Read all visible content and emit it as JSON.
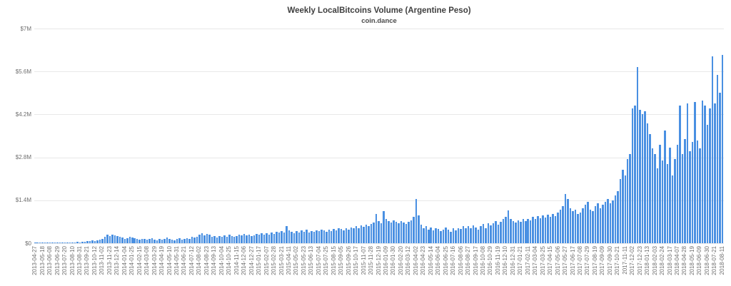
{
  "chart": {
    "title": "Weekly LocalBitcoins Volume (Argentine Peso)",
    "subtitle": "coin.dance"
  },
  "chart_data": {
    "type": "bar",
    "title": "Weekly LocalBitcoins Volume (Argentine Peso)",
    "subtitle": "coin.dance",
    "xlabel": "",
    "ylabel": "",
    "ylim_usd": [
      0,
      7000000
    ],
    "grid": true,
    "legend": "none",
    "bar_color": "#4a90e2",
    "grid_color": "#e8e8e8",
    "axis_text_color": "#6e6e6e",
    "title_color": "#3f3f3f",
    "y_ticks": [
      {
        "label": "$7M",
        "value_millions": 7.0
      },
      {
        "label": "$5.6M",
        "value_millions": 5.6
      },
      {
        "label": "$4.2M",
        "value_millions": 4.2
      },
      {
        "label": "$2.8M",
        "value_millions": 2.8
      },
      {
        "label": "$1.4M",
        "value_millions": 1.4
      },
      {
        "label": "$0",
        "value_millions": 0.0
      }
    ],
    "x_start_date": "2013-04-27",
    "x_interval_days": 7,
    "x_tick_every_n_bars": 3,
    "x_tick_labels": [
      "2013-04-27",
      "2013-05-18",
      "2013-06-08",
      "2013-06-29",
      "2013-07-20",
      "2013-08-10",
      "2013-08-31",
      "2013-09-21",
      "2013-10-12",
      "2013-11-02",
      "2013-11-23",
      "2013-12-14",
      "2014-01-04",
      "2014-01-25",
      "2014-02-15",
      "2014-03-08",
      "2014-03-29",
      "2014-04-19",
      "2014-05-10",
      "2014-05-31",
      "2014-06-21",
      "2014-07-12",
      "2014-08-02",
      "2014-08-23",
      "2014-09-13",
      "2014-10-04",
      "2014-10-25",
      "2014-11-15",
      "2014-12-06",
      "2014-12-27",
      "2015-01-17",
      "2015-02-07",
      "2015-02-28",
      "2015-03-21",
      "2015-04-11",
      "2015-05-02",
      "2015-05-23",
      "2015-06-13",
      "2015-07-04",
      "2015-07-25",
      "2015-08-15",
      "2015-09-05",
      "2015-09-26",
      "2015-10-17",
      "2015-11-07",
      "2015-11-28",
      "2015-12-19",
      "2016-01-09",
      "2016-01-30",
      "2016-02-20",
      "2016-03-12",
      "2016-04-02",
      "2016-04-23",
      "2016-05-14",
      "2016-06-04",
      "2016-06-25",
      "2016-07-16",
      "2016-08-06",
      "2016-08-27",
      "2016-09-17",
      "2016-10-08",
      "2016-10-29",
      "2016-11-19",
      "2016-12-10",
      "2016-12-31",
      "2017-01-21",
      "2017-02-11",
      "2017-03-04",
      "2017-03-25",
      "2017-04-15",
      "2017-05-06",
      "2017-05-27",
      "2017-06-17",
      "2017-07-08",
      "2017-07-29",
      "2017-08-19",
      "2017-09-09",
      "2017-09-30",
      "2017-10-21",
      "2017-11-11",
      "2017-12-02",
      "2017-12-23",
      "2018-01-13",
      "2018-02-03",
      "2018-02-24",
      "2018-03-17",
      "2018-04-07",
      "2018-04-28",
      "2018-05-19",
      "2018-06-09",
      "2018-06-30",
      "2018-07-21",
      "2018-08-11"
    ],
    "values_millions_usd": [
      0.01,
      0.008,
      0.012,
      0.01,
      0.009,
      0.011,
      0.013,
      0.01,
      0.012,
      0.015,
      0.014,
      0.012,
      0.016,
      0.018,
      0.02,
      0.025,
      0.03,
      0.04,
      0.035,
      0.045,
      0.05,
      0.06,
      0.08,
      0.09,
      0.07,
      0.1,
      0.12,
      0.15,
      0.22,
      0.27,
      0.24,
      0.28,
      0.26,
      0.23,
      0.2,
      0.18,
      0.15,
      0.17,
      0.22,
      0.19,
      0.16,
      0.14,
      0.12,
      0.15,
      0.13,
      0.11,
      0.13,
      0.16,
      0.12,
      0.1,
      0.14,
      0.12,
      0.15,
      0.18,
      0.13,
      0.11,
      0.1,
      0.13,
      0.16,
      0.12,
      0.14,
      0.17,
      0.15,
      0.2,
      0.18,
      0.22,
      0.28,
      0.33,
      0.25,
      0.3,
      0.27,
      0.2,
      0.23,
      0.19,
      0.24,
      0.21,
      0.26,
      0.22,
      0.28,
      0.24,
      0.2,
      0.23,
      0.27,
      0.25,
      0.3,
      0.26,
      0.28,
      0.24,
      0.26,
      0.3,
      0.27,
      0.32,
      0.29,
      0.33,
      0.28,
      0.35,
      0.31,
      0.38,
      0.34,
      0.4,
      0.36,
      0.55,
      0.42,
      0.37,
      0.33,
      0.39,
      0.35,
      0.41,
      0.38,
      0.44,
      0.36,
      0.4,
      0.37,
      0.42,
      0.39,
      0.45,
      0.41,
      0.38,
      0.44,
      0.4,
      0.47,
      0.43,
      0.5,
      0.46,
      0.42,
      0.48,
      0.45,
      0.52,
      0.48,
      0.55,
      0.5,
      0.58,
      0.53,
      0.6,
      0.56,
      0.63,
      0.68,
      0.95,
      0.72,
      0.66,
      1.05,
      0.8,
      0.72,
      0.68,
      0.75,
      0.7,
      0.65,
      0.72,
      0.68,
      0.63,
      0.7,
      0.75,
      0.85,
      1.45,
      0.9,
      0.6,
      0.48,
      0.55,
      0.45,
      0.52,
      0.42,
      0.5,
      0.46,
      0.4,
      0.45,
      0.52,
      0.44,
      0.38,
      0.48,
      0.42,
      0.5,
      0.46,
      0.55,
      0.48,
      0.56,
      0.48,
      0.58,
      0.52,
      0.45,
      0.55,
      0.62,
      0.5,
      0.65,
      0.58,
      0.64,
      0.72,
      0.6,
      0.7,
      0.78,
      0.85,
      1.07,
      0.8,
      0.72,
      0.68,
      0.75,
      0.7,
      0.78,
      0.72,
      0.8,
      0.74,
      0.85,
      0.78,
      0.88,
      0.82,
      0.9,
      0.84,
      0.92,
      0.86,
      0.95,
      0.88,
      1.0,
      1.1,
      1.2,
      1.6,
      1.45,
      1.15,
      1.05,
      1.1,
      0.95,
      1.0,
      1.15,
      1.25,
      1.35,
      1.1,
      1.05,
      1.2,
      1.3,
      1.15,
      1.25,
      1.35,
      1.45,
      1.3,
      1.4,
      1.55,
      1.7,
      2.1,
      2.4,
      2.2,
      2.75,
      2.9,
      4.4,
      4.5,
      5.75,
      4.35,
      4.2,
      4.3,
      3.9,
      3.55,
      3.1,
      2.9,
      2.45,
      3.2,
      2.7,
      3.67,
      2.58,
      3.12,
      2.2,
      2.75,
      3.2,
      4.5,
      2.9,
      3.4,
      4.55,
      3.0,
      3.3,
      4.6,
      3.35,
      3.1,
      4.65,
      4.5,
      3.85,
      4.4,
      6.1,
      4.55,
      5.5,
      4.9,
      6.15
    ]
  }
}
